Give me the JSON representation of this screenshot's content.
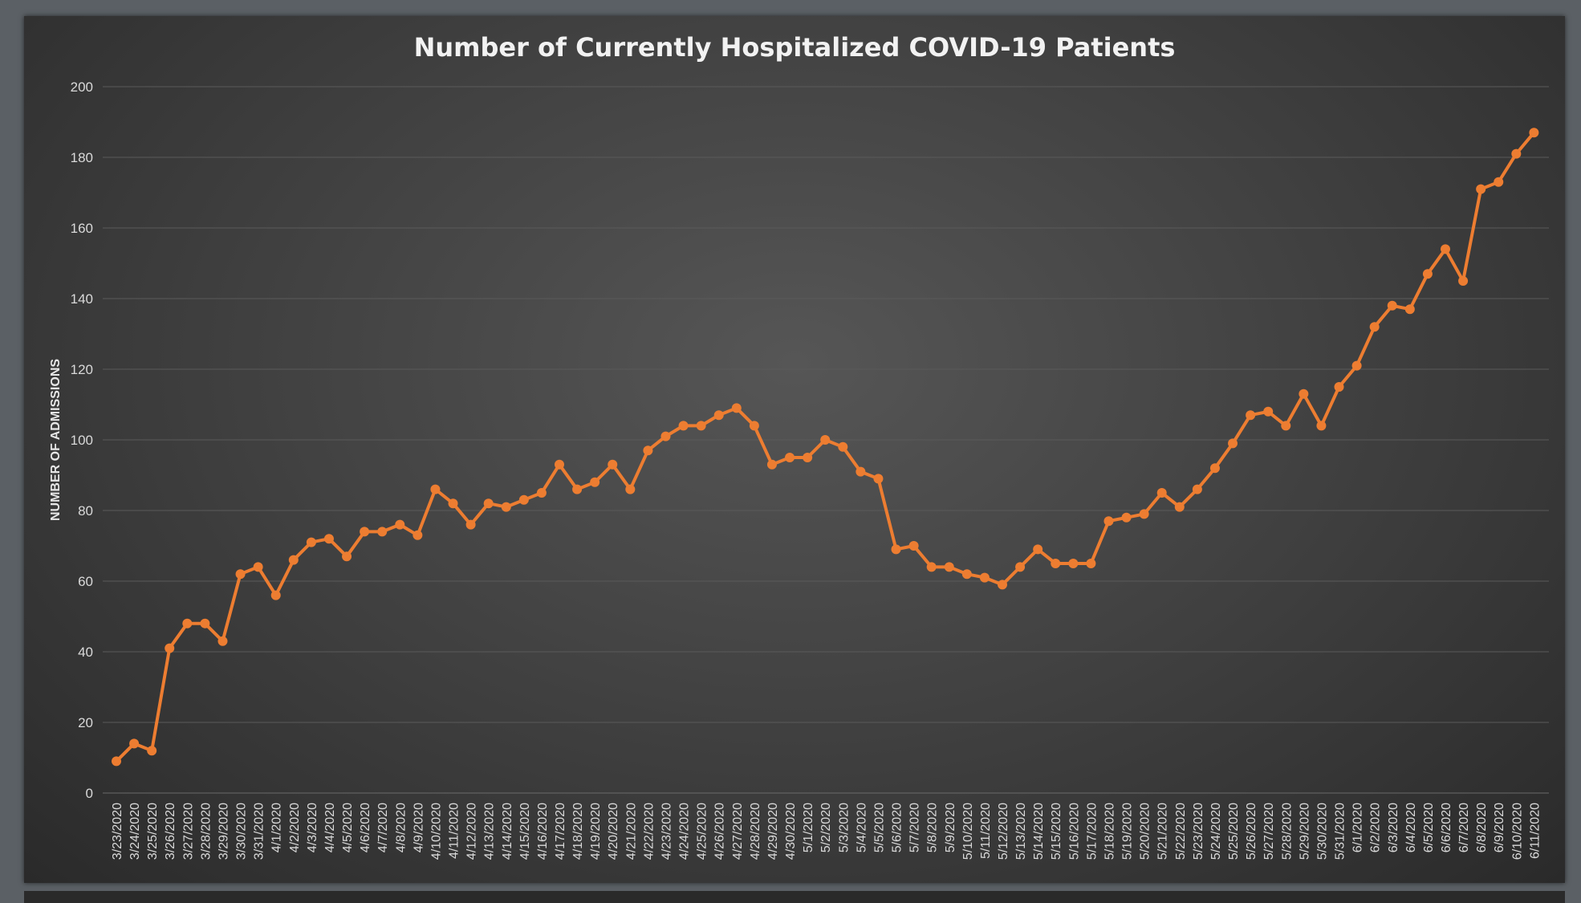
{
  "chart_data": {
    "type": "line",
    "title": "Number of Currently Hospitalized COVID-19 Patients",
    "xlabel": "",
    "ylabel": "NUMBER OF ADMISSIONS",
    "ylim": [
      0,
      200
    ],
    "yticks": [
      "0",
      "20",
      "40",
      "60",
      "80",
      "100",
      "120",
      "140",
      "160",
      "180",
      "200"
    ],
    "grid": true,
    "line_color": "#ed7d31",
    "categories": [
      "3/23/2020",
      "3/24/2020",
      "3/25/2020",
      "3/26/2020",
      "3/27/2020",
      "3/28/2020",
      "3/29/2020",
      "3/30/2020",
      "3/31/2020",
      "4/1/2020",
      "4/2/2020",
      "4/3/2020",
      "4/4/2020",
      "4/5/2020",
      "4/6/2020",
      "4/7/2020",
      "4/8/2020",
      "4/9/2020",
      "4/10/2020",
      "4/11/2020",
      "4/12/2020",
      "4/13/2020",
      "4/14/2020",
      "4/15/2020",
      "4/16/2020",
      "4/17/2020",
      "4/18/2020",
      "4/19/2020",
      "4/20/2020",
      "4/21/2020",
      "4/22/2020",
      "4/23/2020",
      "4/24/2020",
      "4/25/2020",
      "4/26/2020",
      "4/27/2020",
      "4/28/2020",
      "4/29/2020",
      "4/30/2020",
      "5/1/2020",
      "5/2/2020",
      "5/3/2020",
      "5/4/2020",
      "5/5/2020",
      "5/6/2020",
      "5/7/2020",
      "5/8/2020",
      "5/9/2020",
      "5/10/2020",
      "5/11/2020",
      "5/12/2020",
      "5/13/2020",
      "5/14/2020",
      "5/15/2020",
      "5/16/2020",
      "5/17/2020",
      "5/18/2020",
      "5/19/2020",
      "5/20/2020",
      "5/21/2020",
      "5/22/2020",
      "5/23/2020",
      "5/24/2020",
      "5/25/2020",
      "5/26/2020",
      "5/27/2020",
      "5/28/2020",
      "5/29/2020",
      "5/30/2020",
      "5/31/2020",
      "6/1/2020",
      "6/2/2020",
      "6/3/2020",
      "6/4/2020",
      "6/5/2020",
      "6/6/2020",
      "6/7/2020",
      "6/8/2020",
      "6/9/2020",
      "6/10/2020",
      "6/11/2020"
    ],
    "series": [
      {
        "name": "Currently Hospitalized",
        "values": [
          9,
          14,
          12,
          41,
          48,
          48,
          43,
          62,
          64,
          56,
          66,
          71,
          72,
          67,
          74,
          74,
          76,
          73,
          86,
          82,
          76,
          82,
          81,
          83,
          85,
          93,
          86,
          88,
          93,
          86,
          97,
          101,
          104,
          104,
          107,
          109,
          104,
          93,
          95,
          95,
          100,
          98,
          91,
          89,
          69,
          70,
          64,
          64,
          62,
          61,
          59,
          64,
          69,
          65,
          65,
          65,
          77,
          78,
          79,
          85,
          81,
          86,
          92,
          99,
          107,
          108,
          104,
          113,
          104,
          115,
          121,
          132,
          138,
          137,
          147,
          154,
          145,
          171,
          173,
          181,
          187
        ]
      }
    ]
  }
}
